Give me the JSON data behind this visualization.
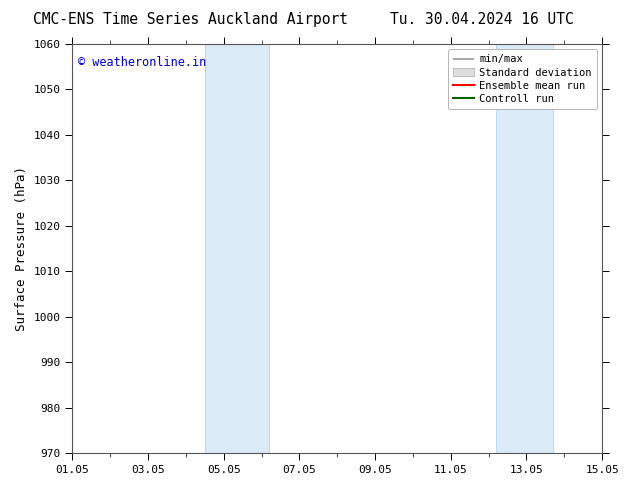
{
  "title_left": "CMC-ENS Time Series Auckland Airport",
  "title_right": "Tu. 30.04.2024 16 UTC",
  "ylabel": "Surface Pressure (hPa)",
  "ymin": 970,
  "ymax": 1060,
  "yticks": [
    970,
    980,
    990,
    1000,
    1010,
    1020,
    1030,
    1040,
    1050,
    1060
  ],
  "xtick_labels": [
    "01.05",
    "03.05",
    "05.05",
    "07.05",
    "09.05",
    "11.05",
    "13.05",
    "15.05"
  ],
  "xtick_positions": [
    0,
    2,
    4,
    6,
    8,
    10,
    12,
    14
  ],
  "xlim": [
    0,
    14
  ],
  "shaded_bands": [
    {
      "xstart": 3.5,
      "xend": 5.2
    },
    {
      "xstart": 11.2,
      "xend": 12.7
    }
  ],
  "shaded_facecolor": "#daeaf7",
  "shaded_edgecolor": "#b8d4e8",
  "watermark_text": "© weatheronline.in",
  "watermark_color": "#0000cc",
  "watermark_fontsize": 8.5,
  "legend_entries": [
    {
      "label": "min/max",
      "type": "minmax"
    },
    {
      "label": "Standard deviation",
      "type": "stddev"
    },
    {
      "label": "Ensemble mean run",
      "type": "line",
      "color": "#ff0000"
    },
    {
      "label": "Controll run",
      "type": "line",
      "color": "#006400"
    }
  ],
  "title_fontsize": 10.5,
  "ylabel_fontsize": 9,
  "tick_fontsize": 8,
  "legend_fontsize": 7.5,
  "fig_width": 6.34,
  "fig_height": 4.9,
  "dpi": 100,
  "bg_color": "#ffffff",
  "spine_color": "#555555"
}
